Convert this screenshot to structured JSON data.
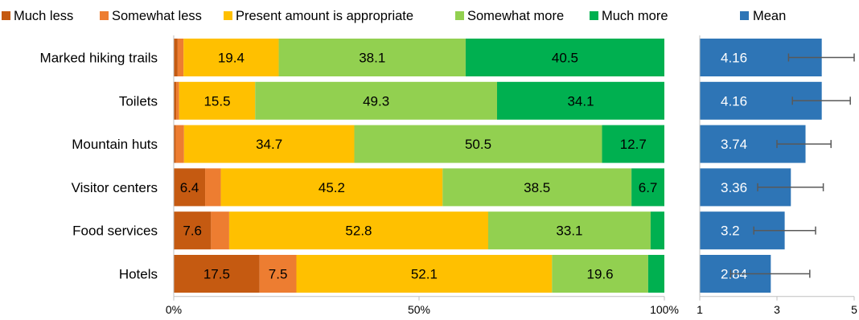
{
  "colors": {
    "much_less": "#c55a11",
    "somewhat_less": "#ed7d31",
    "appropriate": "#ffc000",
    "somewhat_more": "#92d050",
    "much_more": "#00b050",
    "mean": "#2e75b6",
    "error_bar": "#595959",
    "axis": "#bfbfbf",
    "text": "#000000"
  },
  "chart_data": [
    {
      "type": "bar",
      "orientation": "horizontal",
      "stacked": "percent",
      "categories": [
        "Marked hiking trails",
        "Toilets",
        "Mountain huts",
        "Visitor centers",
        "Food services",
        "Hotels"
      ],
      "series": [
        {
          "name": "Much less",
          "color_key": "much_less",
          "values": [
            0.8,
            0.5,
            0.4,
            6.4,
            7.6,
            17.5
          ],
          "labels": [
            "",
            "",
            "",
            "6.4",
            "7.6",
            "17.5"
          ]
        },
        {
          "name": "Somewhat less",
          "color_key": "somewhat_less",
          "values": [
            1.2,
            0.6,
            1.7,
            3.2,
            3.7,
            7.5
          ],
          "labels": [
            "",
            "",
            "",
            "",
            "",
            "7.5"
          ]
        },
        {
          "name": "Present amount is appropriate",
          "color_key": "appropriate",
          "values": [
            19.4,
            15.5,
            34.7,
            45.2,
            52.8,
            52.1
          ],
          "labels": [
            "19.4",
            "15.5",
            "34.7",
            "45.2",
            "52.8",
            "52.1"
          ]
        },
        {
          "name": "Somewhat more",
          "color_key": "somewhat_more",
          "values": [
            38.1,
            49.3,
            50.5,
            38.5,
            33.1,
            19.6
          ],
          "labels": [
            "38.1",
            "49.3",
            "50.5",
            "38.5",
            "33.1",
            "19.6"
          ]
        },
        {
          "name": "Much more",
          "color_key": "much_more",
          "values": [
            40.5,
            34.1,
            12.7,
            6.7,
            2.8,
            3.3
          ],
          "labels": [
            "40.5",
            "34.1",
            "12.7",
            "6.7",
            "",
            ""
          ]
        }
      ],
      "xlim": [
        0,
        100
      ],
      "xticks": [
        "0%",
        "50%",
        "100%"
      ],
      "legend_position": "top"
    },
    {
      "type": "bar",
      "orientation": "horizontal",
      "categories": [
        "Marked hiking trails",
        "Toilets",
        "Mountain huts",
        "Visitor centers",
        "Food services",
        "Hotels"
      ],
      "series": [
        {
          "name": "Mean",
          "color_key": "mean",
          "values": [
            4.16,
            4.16,
            3.74,
            3.36,
            3.2,
            2.84
          ],
          "labels": [
            "4.16",
            "4.16",
            "3.74",
            "3.36",
            "3.2",
            "2.84"
          ],
          "error_low": [
            3.3,
            3.4,
            3.0,
            2.5,
            2.4,
            1.8
          ],
          "error_high": [
            5.0,
            4.9,
            4.4,
            4.2,
            4.0,
            3.85
          ]
        }
      ],
      "xlim": [
        1,
        5
      ],
      "xticks": [
        "1",
        "3",
        "5"
      ],
      "legend_position": "top"
    }
  ]
}
